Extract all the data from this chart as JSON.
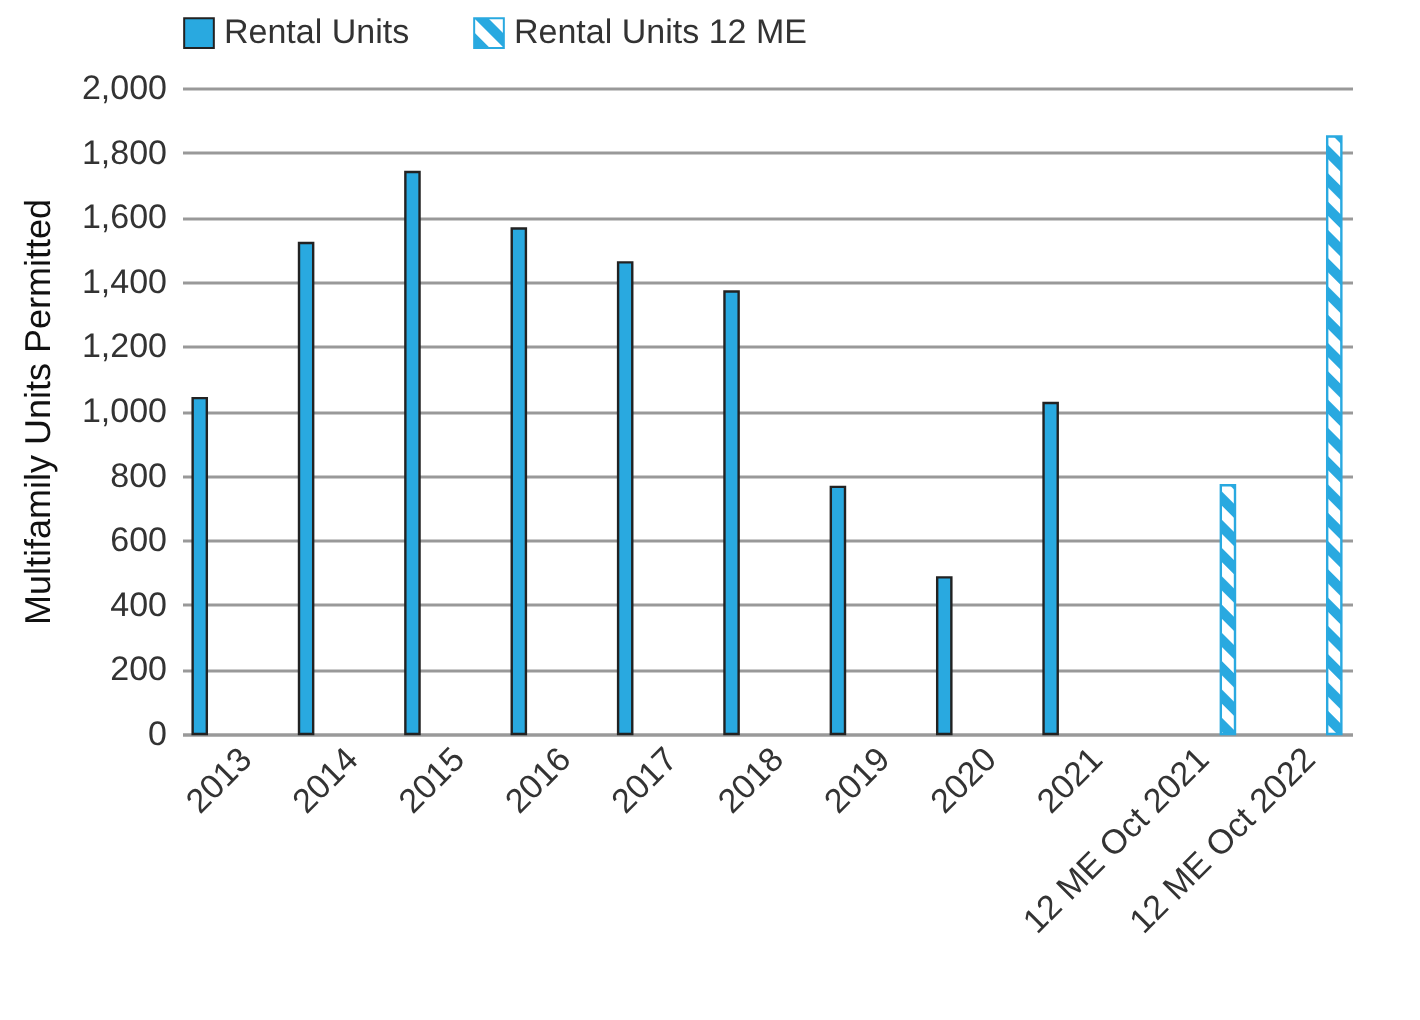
{
  "chart_data": {
    "type": "bar",
    "ylabel": "Multifamily Units Permitted",
    "categories": [
      "2013",
      "2014",
      "2015",
      "2016",
      "2017",
      "2018",
      "2019",
      "2020",
      "2021",
      "12 ME Oct 2021",
      "12 ME Oct 2022"
    ],
    "series": [
      {
        "name": "Rental Units",
        "color": "#29a9e0",
        "values": [
          1040,
          1520,
          1740,
          1565,
          1460,
          1370,
          765,
          485,
          1025,
          null,
          null
        ]
      },
      {
        "name": "Rental Units 12 ME",
        "color": "#29a9e0",
        "values": [
          null,
          null,
          null,
          null,
          null,
          null,
          null,
          null,
          null,
          770,
          1850
        ]
      }
    ],
    "ylim": [
      0,
      2000
    ],
    "yticks": [
      0,
      200,
      400,
      600,
      800,
      {
        "value": 1000,
        "label": "1,000"
      },
      {
        "value": 1200,
        "label": "1,200"
      },
      {
        "value": 1400,
        "label": "1,400"
      },
      {
        "value": 1600,
        "label": "1,600"
      },
      {
        "value": 1800,
        "label": "1,800"
      },
      {
        "value": 2000,
        "label": "2,000"
      }
    ],
    "grid": "y",
    "legend": "top"
  }
}
